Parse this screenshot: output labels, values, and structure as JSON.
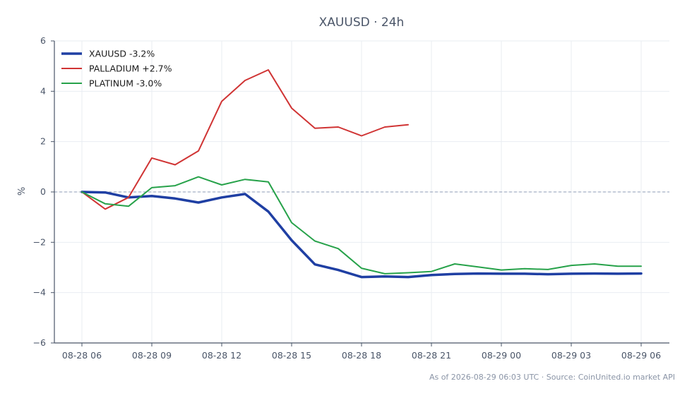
{
  "chart_data": {
    "type": "line",
    "title": "XAUUSD · 24h",
    "xlabel": "",
    "ylabel": "%",
    "ylim": [
      -6,
      6
    ],
    "yticks": [
      6,
      4,
      2,
      0,
      -2,
      -4,
      -6
    ],
    "ytick_labels": [
      "6",
      "4",
      "2",
      "0",
      "−2",
      "−4",
      "−6"
    ],
    "xticks": [
      "08-28 06",
      "08-28 09",
      "08-28 12",
      "08-28 15",
      "08-28 18",
      "08-28 21",
      "08-29 00",
      "08-29 03",
      "08-29 06"
    ],
    "x_hours": [
      0,
      1,
      2,
      3,
      4,
      5,
      6,
      7,
      8,
      9,
      10,
      11,
      12,
      13,
      14,
      15,
      16,
      17,
      18,
      19,
      20,
      21,
      22,
      23,
      24
    ],
    "grid": true,
    "zero_line": true,
    "legend_position": "top-left",
    "series": [
      {
        "name": "XAUUSD -3.2%",
        "color": "#1f3fa3",
        "values": [
          0.0,
          -0.02,
          -0.22,
          -0.16,
          -0.26,
          -0.42,
          -0.22,
          -0.08,
          -0.78,
          -1.92,
          -2.88,
          -3.1,
          -3.38,
          -3.36,
          -3.38,
          -3.3,
          -3.26,
          -3.24,
          -3.25,
          -3.25,
          -3.27,
          -3.25,
          -3.24,
          -3.25,
          -3.24
        ]
      },
      {
        "name": "PALLADIUM +2.7%",
        "color": "#d03434",
        "values": [
          0.0,
          -0.68,
          -0.22,
          1.35,
          1.08,
          1.63,
          3.6,
          4.43,
          4.85,
          3.33,
          2.53,
          2.58,
          2.23,
          2.58,
          2.67,
          null,
          null,
          null,
          null,
          null,
          null,
          null,
          null,
          null,
          null
        ]
      },
      {
        "name": "PLATINUM -3.0%",
        "color": "#27a24a",
        "values": [
          0.0,
          -0.47,
          -0.57,
          0.17,
          0.25,
          0.6,
          0.28,
          0.5,
          0.4,
          -1.22,
          -1.95,
          -2.25,
          -3.03,
          -3.25,
          -3.21,
          -3.16,
          -2.86,
          -2.98,
          -3.1,
          -3.05,
          -3.08,
          -2.92,
          -2.86,
          -2.95,
          -2.95
        ]
      }
    ]
  },
  "footer": {
    "text": "As of 2026-08-29 06:03 UTC · Source: CoinUnited.io market API"
  }
}
